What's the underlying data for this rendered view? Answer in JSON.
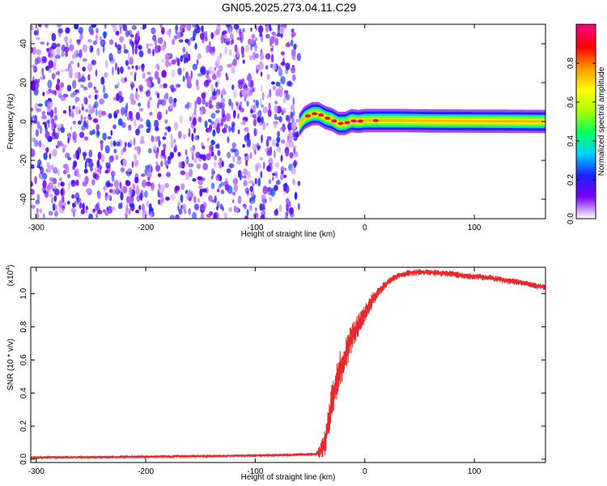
{
  "figure": {
    "title": "GN05.2025.273.04.11.C29"
  },
  "chart_data": [
    {
      "id": "spectrogram",
      "type": "heatmap",
      "xlabel": "Height of straight line (km)",
      "ylabel": "Frequency (Hz)",
      "xlim": [
        -305,
        165
      ],
      "ylim": [
        -50,
        50
      ],
      "xticks": [
        -300,
        -200,
        -100,
        0,
        100
      ],
      "yticks": [
        -40,
        -20,
        0,
        20,
        40
      ],
      "noise_region_x": [
        -305,
        -60
      ],
      "signal_track": {
        "x": [
          -60,
          -55,
          -48,
          -42,
          -36,
          -30,
          -24,
          -18,
          -12,
          -6,
          0,
          10,
          30,
          60,
          100,
          165
        ],
        "freq": [
          -2,
          2,
          4,
          4,
          2,
          1,
          -1,
          -1,
          0.5,
          0,
          0.5,
          0.5,
          0.5,
          0.3,
          0.2,
          0
        ],
        "peak_amplitude": 0.95,
        "width_hz": 3
      },
      "colorbar": {
        "label": "Normalized spectral amplitude",
        "range": [
          0,
          1
        ],
        "ticks": [
          "0.0",
          "0.2",
          "0.4",
          "0.6",
          "0.8"
        ],
        "colormap": [
          "#ffffff",
          "#7b00ff",
          "#2020ff",
          "#00d0ff",
          "#00ff60",
          "#aaff00",
          "#ffff00",
          "#ff9900",
          "#ff0000",
          "#ff0080"
        ]
      }
    },
    {
      "id": "snr",
      "type": "line",
      "xlabel": "Height of straight line (km)",
      "ylabel": "SNR (10 * v/v)",
      "multiplier": "(x10",
      "multiplier_exp": "4",
      "xlim": [
        -305,
        165
      ],
      "ylim": [
        -0.02,
        1.16
      ],
      "xticks": [
        -300,
        -200,
        -100,
        0,
        100
      ],
      "yticks": [
        "0.0",
        "0.2",
        "0.4",
        "0.6",
        "0.8",
        "1.0"
      ],
      "series": [
        {
          "color": "#e8282a",
          "x": [
            -305,
            -250,
            -200,
            -150,
            -100,
            -70,
            -45,
            -40,
            -36,
            -33,
            -30,
            -26,
            -22,
            -18,
            -14,
            -10,
            -5,
            0,
            5,
            10,
            15,
            20,
            25,
            30,
            40,
            50,
            60,
            70,
            80,
            90,
            100,
            110,
            120,
            130,
            140,
            150,
            165
          ],
          "y": [
            0.01,
            0.012,
            0.015,
            0.018,
            0.022,
            0.026,
            0.03,
            0.05,
            0.12,
            0.22,
            0.35,
            0.45,
            0.55,
            0.62,
            0.7,
            0.76,
            0.82,
            0.88,
            0.94,
            0.99,
            1.03,
            1.06,
            1.09,
            1.11,
            1.125,
            1.13,
            1.13,
            1.125,
            1.12,
            1.11,
            1.105,
            1.1,
            1.09,
            1.08,
            1.07,
            1.055,
            1.04
          ],
          "noise": [
            0.008,
            0.008,
            0.008,
            0.008,
            0.008,
            0.008,
            0.01,
            0.05,
            0.1,
            0.12,
            0.12,
            0.12,
            0.12,
            0.1,
            0.09,
            0.08,
            0.07,
            0.06,
            0.05,
            0.04,
            0.03,
            0.025,
            0.02,
            0.02,
            0.02,
            0.02,
            0.02,
            0.02,
            0.02,
            0.02,
            0.02,
            0.02,
            0.02,
            0.02,
            0.02,
            0.02,
            0.02
          ]
        }
      ]
    }
  ]
}
